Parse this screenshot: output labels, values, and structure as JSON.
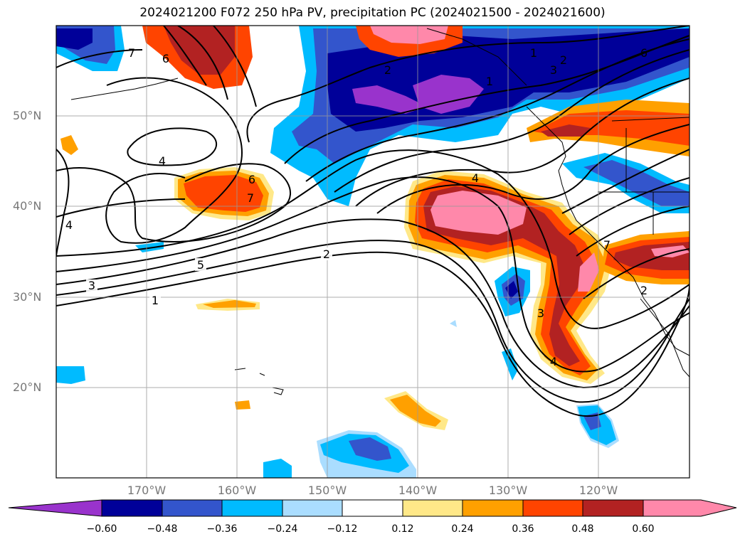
{
  "title": "2024021200 F072 250 hPa PV, precipitation PC (2024021500 - 2024021600)",
  "lat_labels": [
    "50°N",
    "40°N",
    "30°N",
    "20°N"
  ],
  "lon_labels": [
    "170°W",
    "160°W",
    "150°W",
    "140°W",
    "130°W",
    "120°W"
  ],
  "colorbar": {
    "ticks": [
      "−0.60",
      "−0.48",
      "−0.36",
      "−0.24",
      "−0.12",
      "0.12",
      "0.24",
      "0.36",
      "0.48",
      "0.60"
    ],
    "colors": [
      "#9933cc",
      "#000099",
      "#3355cc",
      "#00bbff",
      "#aaddff",
      "#ffffff",
      "#ffe888",
      "#ffa000",
      "#ff4400",
      "#b22222",
      "#ff88aa"
    ]
  },
  "contour_labels": [
    "1",
    "2",
    "3",
    "4",
    "5",
    "6",
    "7",
    "7",
    "6",
    "4",
    "4",
    "3",
    "2",
    "1",
    "2",
    "3",
    "6",
    "7",
    "2",
    "4",
    "1"
  ],
  "shading_colors": {
    "purple": "#9933cc",
    "navy": "#000099",
    "blue": "#3355cc",
    "cyan": "#00bbff",
    "lightblue": "#aaddff",
    "yellow": "#ffe888",
    "orange": "#ffa000",
    "redorange": "#ff4400",
    "darkred": "#b22222",
    "pink": "#ff88aa"
  }
}
